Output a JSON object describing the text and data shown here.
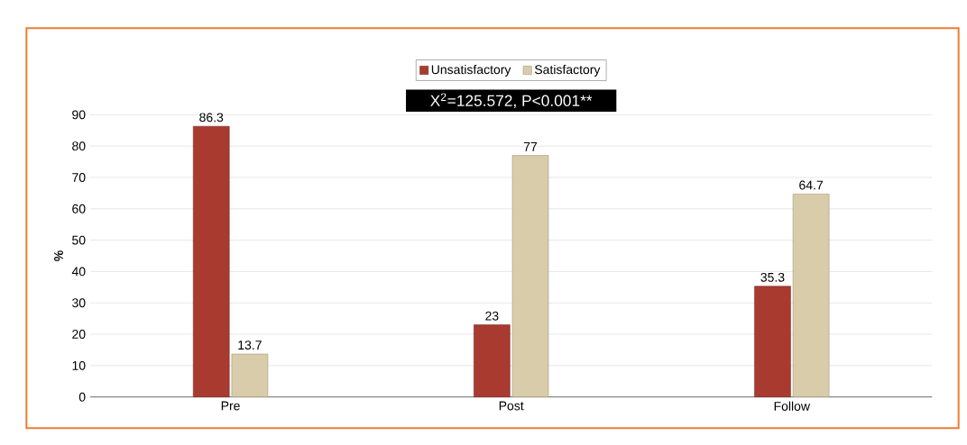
{
  "chart_data": {
    "type": "bar",
    "ylabel": "%",
    "categories": [
      "Pre",
      "Post",
      "Follow"
    ],
    "series": [
      {
        "name": "Unsatisfactory",
        "color": "#a83a30",
        "values": [
          86.3,
          23,
          35.3
        ]
      },
      {
        "name": "Satisfactory",
        "color": "#d9ccaa",
        "values": [
          13.7,
          77,
          64.7
        ]
      }
    ],
    "ylim": [
      0,
      90
    ],
    "yticks": [
      0,
      10,
      20,
      30,
      40,
      50,
      60,
      70,
      80,
      90
    ],
    "grid": "y",
    "legend": "top",
    "data_labels": true,
    "annotations": [
      "X$^{2}$=125.572, P<0.001**"
    ]
  }
}
